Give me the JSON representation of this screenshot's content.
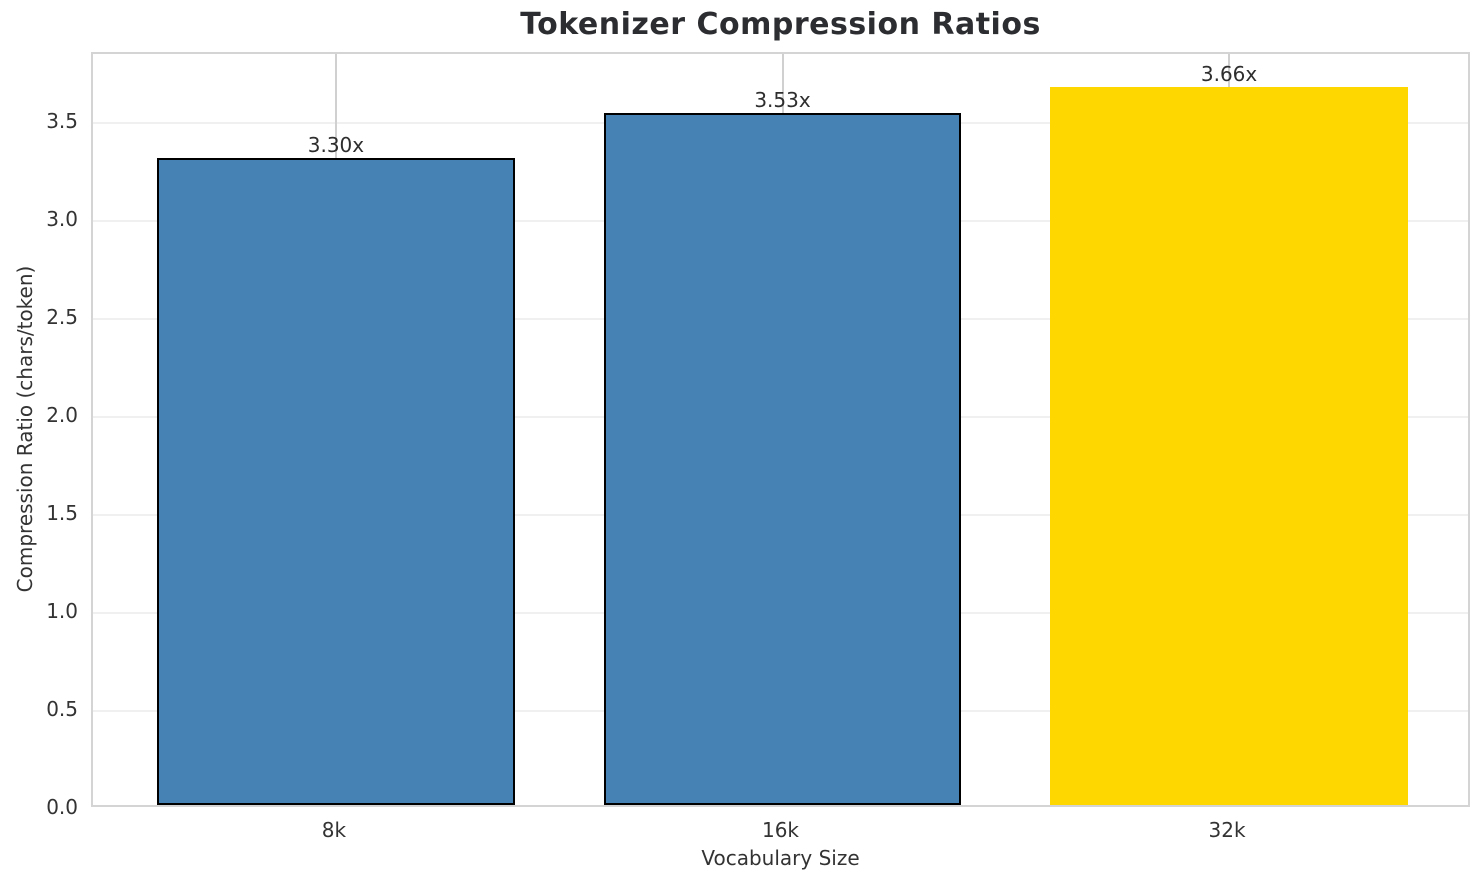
{
  "chart_data": {
    "type": "bar",
    "title": "Tokenizer Compression Ratios",
    "xlabel": "Vocabulary Size",
    "ylabel": "Compression Ratio (chars/token)",
    "categories": [
      "8k",
      "16k",
      "32k"
    ],
    "values": [
      3.3,
      3.53,
      3.66
    ],
    "bar_labels": [
      "3.30x",
      "3.53x",
      "3.66x"
    ],
    "bar_colors": [
      "#4682b4",
      "#4682b4",
      "#ffd700"
    ],
    "bar_edge_colors": [
      "#000000",
      "#000000",
      "none"
    ],
    "yticks": [
      0.0,
      0.5,
      1.0,
      1.5,
      2.0,
      2.5,
      3.0,
      3.5
    ],
    "ytick_labels": [
      "0.0",
      "0.5",
      "1.0",
      "1.5",
      "2.0",
      "2.5",
      "3.0",
      "3.5"
    ],
    "ylim": [
      0,
      3.85
    ],
    "grid": "both",
    "legend": "none"
  },
  "colors": {
    "bar_blue": "#4682b4",
    "bar_gold": "#ffd700",
    "bar_edge": "#000000",
    "grid_horizontal": "#f0f0f0",
    "grid_vertical": "#d0d0d0",
    "spine": "#d4d4d4",
    "title_text": "#2b2d30",
    "tick_text": "#333333",
    "bar_label_text": "#2e2e2e",
    "background": "#ffffff"
  }
}
